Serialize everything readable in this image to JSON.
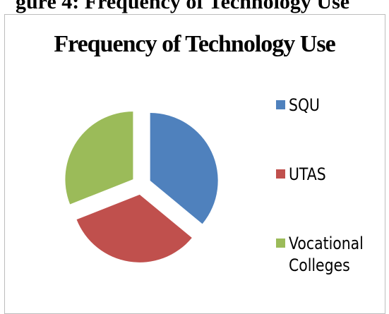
{
  "caption": "gure 4: Frequency of Technology Use",
  "chart_data": {
    "type": "pie",
    "title": "Frequency of Technology Use",
    "categories": [
      "SQU",
      "UTAS",
      "Vocational Colleges"
    ],
    "values": [
      36,
      33,
      31
    ],
    "colors": [
      "#4f81bd",
      "#c0504d",
      "#9bbb59"
    ],
    "legend": "right",
    "exploded": true
  }
}
